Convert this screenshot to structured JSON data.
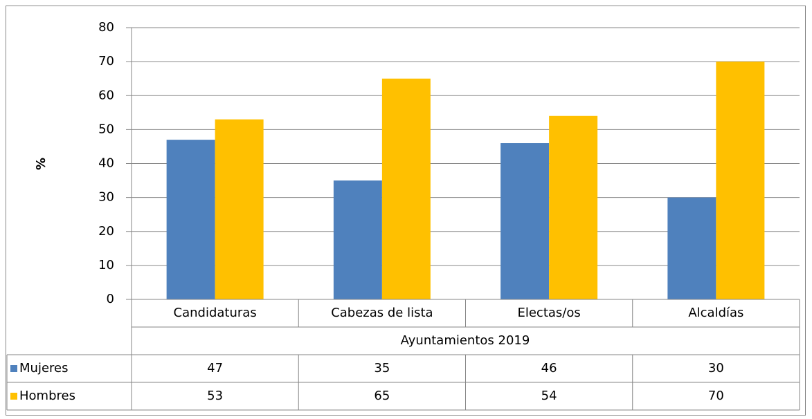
{
  "chart_data": {
    "type": "bar",
    "ylabel": "%",
    "group_label": "Ayuntamientos 2019",
    "categories": [
      "Candidaturas",
      "Cabezas de lista",
      "Electas/os",
      "Alcaldías"
    ],
    "series": [
      {
        "name": "Mujeres",
        "color": "#4f81bd",
        "values": [
          47,
          35,
          46,
          30
        ]
      },
      {
        "name": "Hombres",
        "color": "#ffc000",
        "values": [
          53,
          65,
          54,
          70
        ]
      }
    ],
    "ylim": [
      0,
      80
    ],
    "yticks": [
      0,
      10,
      20,
      30,
      40,
      50,
      60,
      70,
      80
    ],
    "grid": true,
    "data_table": true
  }
}
